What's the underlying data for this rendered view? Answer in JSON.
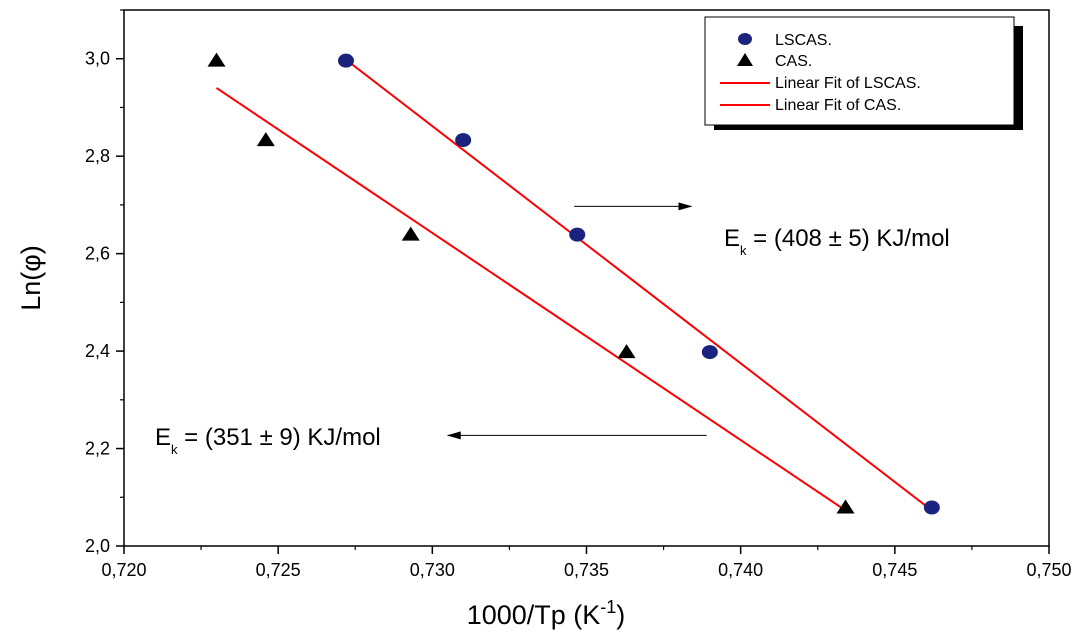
{
  "chart_data": {
    "type": "scatter",
    "xlabel": "1000/Tp (K",
    "xlabel_sup": "-1",
    "xlabel_close": ")",
    "ylabel": "Ln(φ)",
    "xlim": [
      0.72,
      0.75
    ],
    "ylim": [
      2.0,
      3.1
    ],
    "x_ticks": [
      0.72,
      0.725,
      0.73,
      0.735,
      0.74,
      0.745,
      0.75
    ],
    "x_tick_labels": [
      "0,720",
      "0,725",
      "0,730",
      "0,735",
      "0,740",
      "0,745",
      "0,750"
    ],
    "y_ticks": [
      2.0,
      2.2,
      2.4,
      2.6,
      2.8,
      3.0
    ],
    "y_tick_labels": [
      "2,0",
      "2,2",
      "2,4",
      "2,6",
      "2,8",
      "3,0"
    ],
    "grid": false,
    "legend_position": "top-right",
    "series": [
      {
        "name": "LSCAS.",
        "marker": "circle",
        "color": "#1a237e",
        "points": [
          {
            "x": 0.7272,
            "y": 2.996
          },
          {
            "x": 0.731,
            "y": 2.833
          },
          {
            "x": 0.7347,
            "y": 2.639
          },
          {
            "x": 0.739,
            "y": 2.398
          },
          {
            "x": 0.7462,
            "y": 2.079
          }
        ]
      },
      {
        "name": "CAS.",
        "marker": "triangle",
        "color": "#000000",
        "points": [
          {
            "x": 0.723,
            "y": 2.996
          },
          {
            "x": 0.7246,
            "y": 2.833
          },
          {
            "x": 0.7293,
            "y": 2.639
          },
          {
            "x": 0.7363,
            "y": 2.398
          },
          {
            "x": 0.7434,
            "y": 2.079
          }
        ]
      }
    ],
    "fits": [
      {
        "name": "Linear Fit of LSCAS.",
        "color": "#ff0000",
        "x": [
          0.7272,
          0.7462
        ],
        "y": [
          2.998,
          2.073
        ]
      },
      {
        "name": "Linear Fit of CAS.",
        "color": "#ff0000",
        "x": [
          0.723,
          0.7434
        ],
        "y": [
          2.94,
          2.073
        ]
      }
    ],
    "annotations": [
      {
        "id": "lscas",
        "main": "E",
        "sub": "k",
        "rest": " = (408 ± 5) KJ/mol",
        "arrow_from": [
          0.7346,
          2.697
        ],
        "arrow_to": [
          0.7384,
          2.697
        ]
      },
      {
        "id": "cas",
        "main": "E",
        "sub": "k",
        "rest": " = (351 ± 9) KJ/mol",
        "arrow_from": [
          0.7389,
          2.227
        ],
        "arrow_to": [
          0.7305,
          2.227
        ]
      }
    ]
  }
}
